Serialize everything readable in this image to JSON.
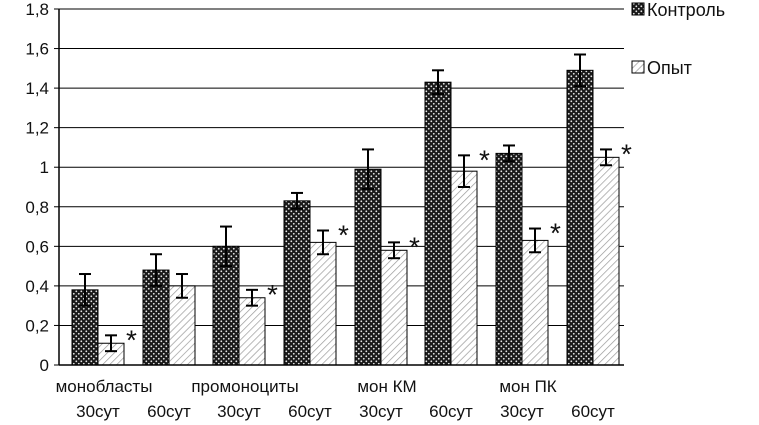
{
  "chart_data": {
    "type": "bar",
    "title": "",
    "xlabel": "",
    "ylabel": "",
    "ylim": [
      0,
      1.8
    ],
    "yticks": [
      "0",
      "0,2",
      "0,4",
      "0,6",
      "0,8",
      "1",
      "1,2",
      "1,4",
      "1,6",
      "1,8"
    ],
    "grid": true,
    "legend_position": "top-right",
    "groups": [
      "монобласты",
      "промоноциты",
      "мон КМ",
      "мон ПК"
    ],
    "categories": [
      "30сут",
      "60сут",
      "30сут",
      "60сут",
      "30сут",
      "60сут",
      "30сут",
      "60сут"
    ],
    "series": [
      {
        "name": "Контроль",
        "pattern": "dark-dotted",
        "values": [
          0.38,
          0.48,
          0.6,
          0.83,
          0.99,
          1.43,
          1.07,
          1.49
        ],
        "errors": [
          0.08,
          0.08,
          0.1,
          0.04,
          0.1,
          0.06,
          0.04,
          0.08
        ]
      },
      {
        "name": "Опыт",
        "pattern": "light-hatched",
        "values": [
          0.11,
          0.4,
          0.34,
          0.62,
          0.58,
          0.98,
          0.63,
          1.05
        ],
        "errors": [
          0.04,
          0.06,
          0.04,
          0.06,
          0.04,
          0.08,
          0.06,
          0.04
        ]
      }
    ],
    "significance": [
      true,
      false,
      true,
      true,
      true,
      true,
      true,
      true
    ],
    "significance_mark": "*"
  },
  "colors": {
    "control_fill": "#1a1a1a",
    "control_dots": "#e6e6e6",
    "experiment_fill": "#ffffff",
    "experiment_hatch": "#9a9a9a",
    "axis": "#000000",
    "grid": "#000000"
  }
}
